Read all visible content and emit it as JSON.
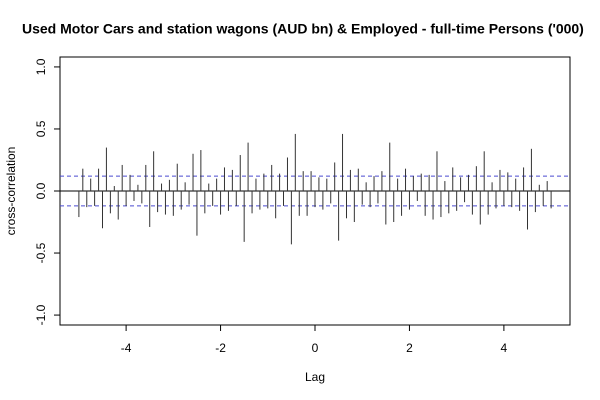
{
  "chart_data": {
    "type": "ccf",
    "title": "Used Motor Cars and station wagons (AUD bn) & Employed - full-time Persons ('000)",
    "x_label": "Lag",
    "y_label": "cross-correlation",
    "xlim": [
      -5.4,
      5.4
    ],
    "ylim": [
      -1.08,
      1.08
    ],
    "xticks": [
      -4,
      -2,
      0,
      2,
      4
    ],
    "yticks": [
      {
        "value": -1.0,
        "label": "-1.0"
      },
      -0.5,
      {
        "value": 0.0,
        "label": "0.0"
      },
      0.5,
      {
        "value": 1.0,
        "label": "1.0"
      }
    ],
    "ci_lines": [
      0.12,
      -0.12
    ],
    "ci_color": "#4a4ad0",
    "color": "#333333",
    "x": [
      -5,
      -4.917,
      -4.833,
      -4.75,
      -4.667,
      -4.583,
      -4.5,
      -4.417,
      -4.333,
      -4.25,
      -4.167,
      -4.083,
      -4,
      -3.917,
      -3.833,
      -3.75,
      -3.667,
      -3.583,
      -3.5,
      -3.417,
      -3.333,
      -3.25,
      -3.167,
      -3.083,
      -3,
      -2.917,
      -2.833,
      -2.75,
      -2.667,
      -2.583,
      -2.5,
      -2.417,
      -2.333,
      -2.25,
      -2.167,
      -2.083,
      -2,
      -1.917,
      -1.833,
      -1.75,
      -1.667,
      -1.583,
      -1.5,
      -1.417,
      -1.333,
      -1.25,
      -1.167,
      -1.083,
      -1,
      -0.917,
      -0.833,
      -0.75,
      -0.667,
      -0.583,
      -0.5,
      -0.417,
      -0.333,
      -0.25,
      -0.167,
      -0.083,
      0,
      0.083,
      0.167,
      0.25,
      0.333,
      0.417,
      0.5,
      0.583,
      0.667,
      0.75,
      0.833,
      0.917,
      1,
      1.083,
      1.167,
      1.25,
      1.333,
      1.417,
      1.5,
      1.583,
      1.667,
      1.75,
      1.833,
      1.917,
      2,
      2.083,
      2.167,
      2.25,
      2.333,
      2.417,
      2.5,
      2.583,
      2.667,
      2.75,
      2.833,
      2.917,
      3,
      3.083,
      3.167,
      3.25,
      3.333,
      3.417,
      3.5,
      3.583,
      3.667,
      3.75,
      3.833,
      3.917,
      4,
      4.083,
      4.167,
      4.25,
      4.333,
      4.417,
      4.5,
      4.583,
      4.667,
      4.75,
      4.833,
      4.917,
      5
    ],
    "values": [
      -0.21,
      0.18,
      -0.13,
      0.1,
      -0.12,
      0.18,
      -0.3,
      0.35,
      -0.18,
      0.04,
      -0.23,
      0.21,
      -0.12,
      0.13,
      -0.08,
      0.05,
      -0.1,
      0.21,
      -0.29,
      0.32,
      -0.17,
      0.06,
      -0.19,
      0.09,
      -0.2,
      0.22,
      -0.15,
      0.07,
      -0.11,
      0.3,
      -0.36,
      0.33,
      -0.18,
      0.06,
      -0.12,
      0.1,
      -0.19,
      0.19,
      -0.16,
      0.17,
      -0.12,
      0.29,
      -0.41,
      0.39,
      -0.18,
      0.1,
      -0.15,
      0.14,
      -0.14,
      0.21,
      -0.22,
      0.14,
      -0.12,
      0.27,
      -0.43,
      0.46,
      -0.2,
      0.16,
      -0.2,
      0.16,
      -0.13,
      0.11,
      -0.15,
      0.1,
      -0.1,
      0.23,
      -0.4,
      0.46,
      -0.22,
      0.17,
      -0.25,
      0.18,
      -0.11,
      0.07,
      -0.13,
      0.12,
      -0.1,
      0.16,
      -0.27,
      0.39,
      -0.25,
      0.1,
      -0.2,
      0.18,
      -0.15,
      0.12,
      -0.08,
      0.14,
      -0.2,
      0.13,
      -0.23,
      0.32,
      -0.21,
      0.08,
      -0.18,
      0.19,
      -0.16,
      0.11,
      -0.09,
      0.13,
      -0.19,
      0.2,
      -0.27,
      0.32,
      -0.19,
      0.07,
      -0.14,
      0.17,
      -0.12,
      0.15,
      -0.13,
      0.1,
      -0.16,
      0.19,
      -0.31,
      0.34,
      -0.17,
      0.05,
      -0.12,
      0.08,
      -0.14
    ]
  }
}
